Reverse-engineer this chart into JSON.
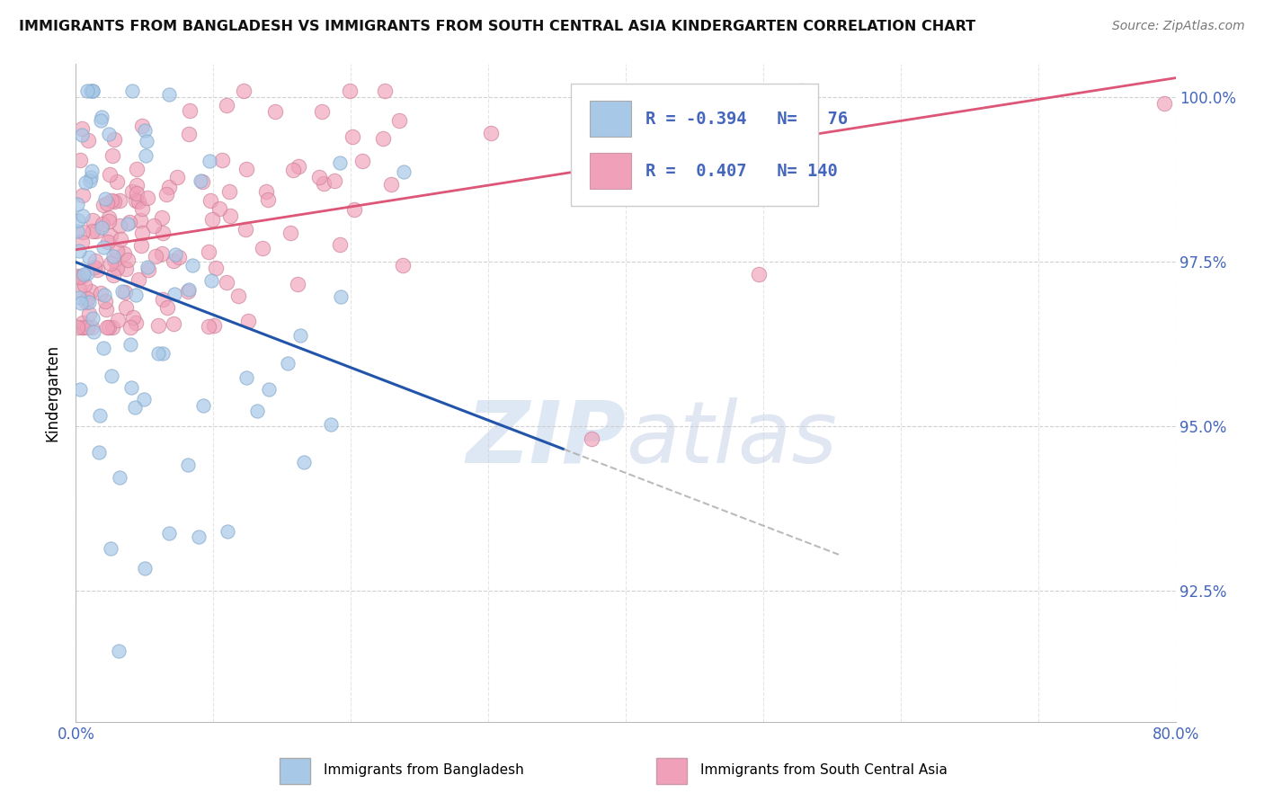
{
  "title": "IMMIGRANTS FROM BANGLADESH VS IMMIGRANTS FROM SOUTH CENTRAL ASIA KINDERGARTEN CORRELATION CHART",
  "source": "Source: ZipAtlas.com",
  "xlabel_blue": "Immigrants from Bangladesh",
  "xlabel_pink": "Immigrants from South Central Asia",
  "ylabel": "Kindergarten",
  "xlim": [
    0.0,
    0.8
  ],
  "ylim": [
    0.905,
    1.005
  ],
  "xticks": [
    0.0,
    0.1,
    0.2,
    0.3,
    0.4,
    0.5,
    0.6,
    0.7,
    0.8
  ],
  "xticklabels": [
    "0.0%",
    "",
    "",
    "",
    "",
    "",
    "",
    "",
    "80.0%"
  ],
  "yticks": [
    0.925,
    0.95,
    0.975,
    1.0
  ],
  "yticklabels": [
    "92.5%",
    "95.0%",
    "97.5%",
    "100.0%"
  ],
  "blue_R": -0.394,
  "blue_N": 76,
  "pink_R": 0.407,
  "pink_N": 140,
  "blue_color": "#A8C8E8",
  "pink_color": "#F0A0B8",
  "blue_edge_color": "#85AACC",
  "pink_edge_color": "#CC8098",
  "blue_line_color": "#2255AA",
  "pink_line_color": "#DD5577",
  "watermark_color": "#D0DEF0",
  "grid_color": "#CCCCCC",
  "tick_color": "#4466BB",
  "title_color": "#111111",
  "source_color": "#777777"
}
